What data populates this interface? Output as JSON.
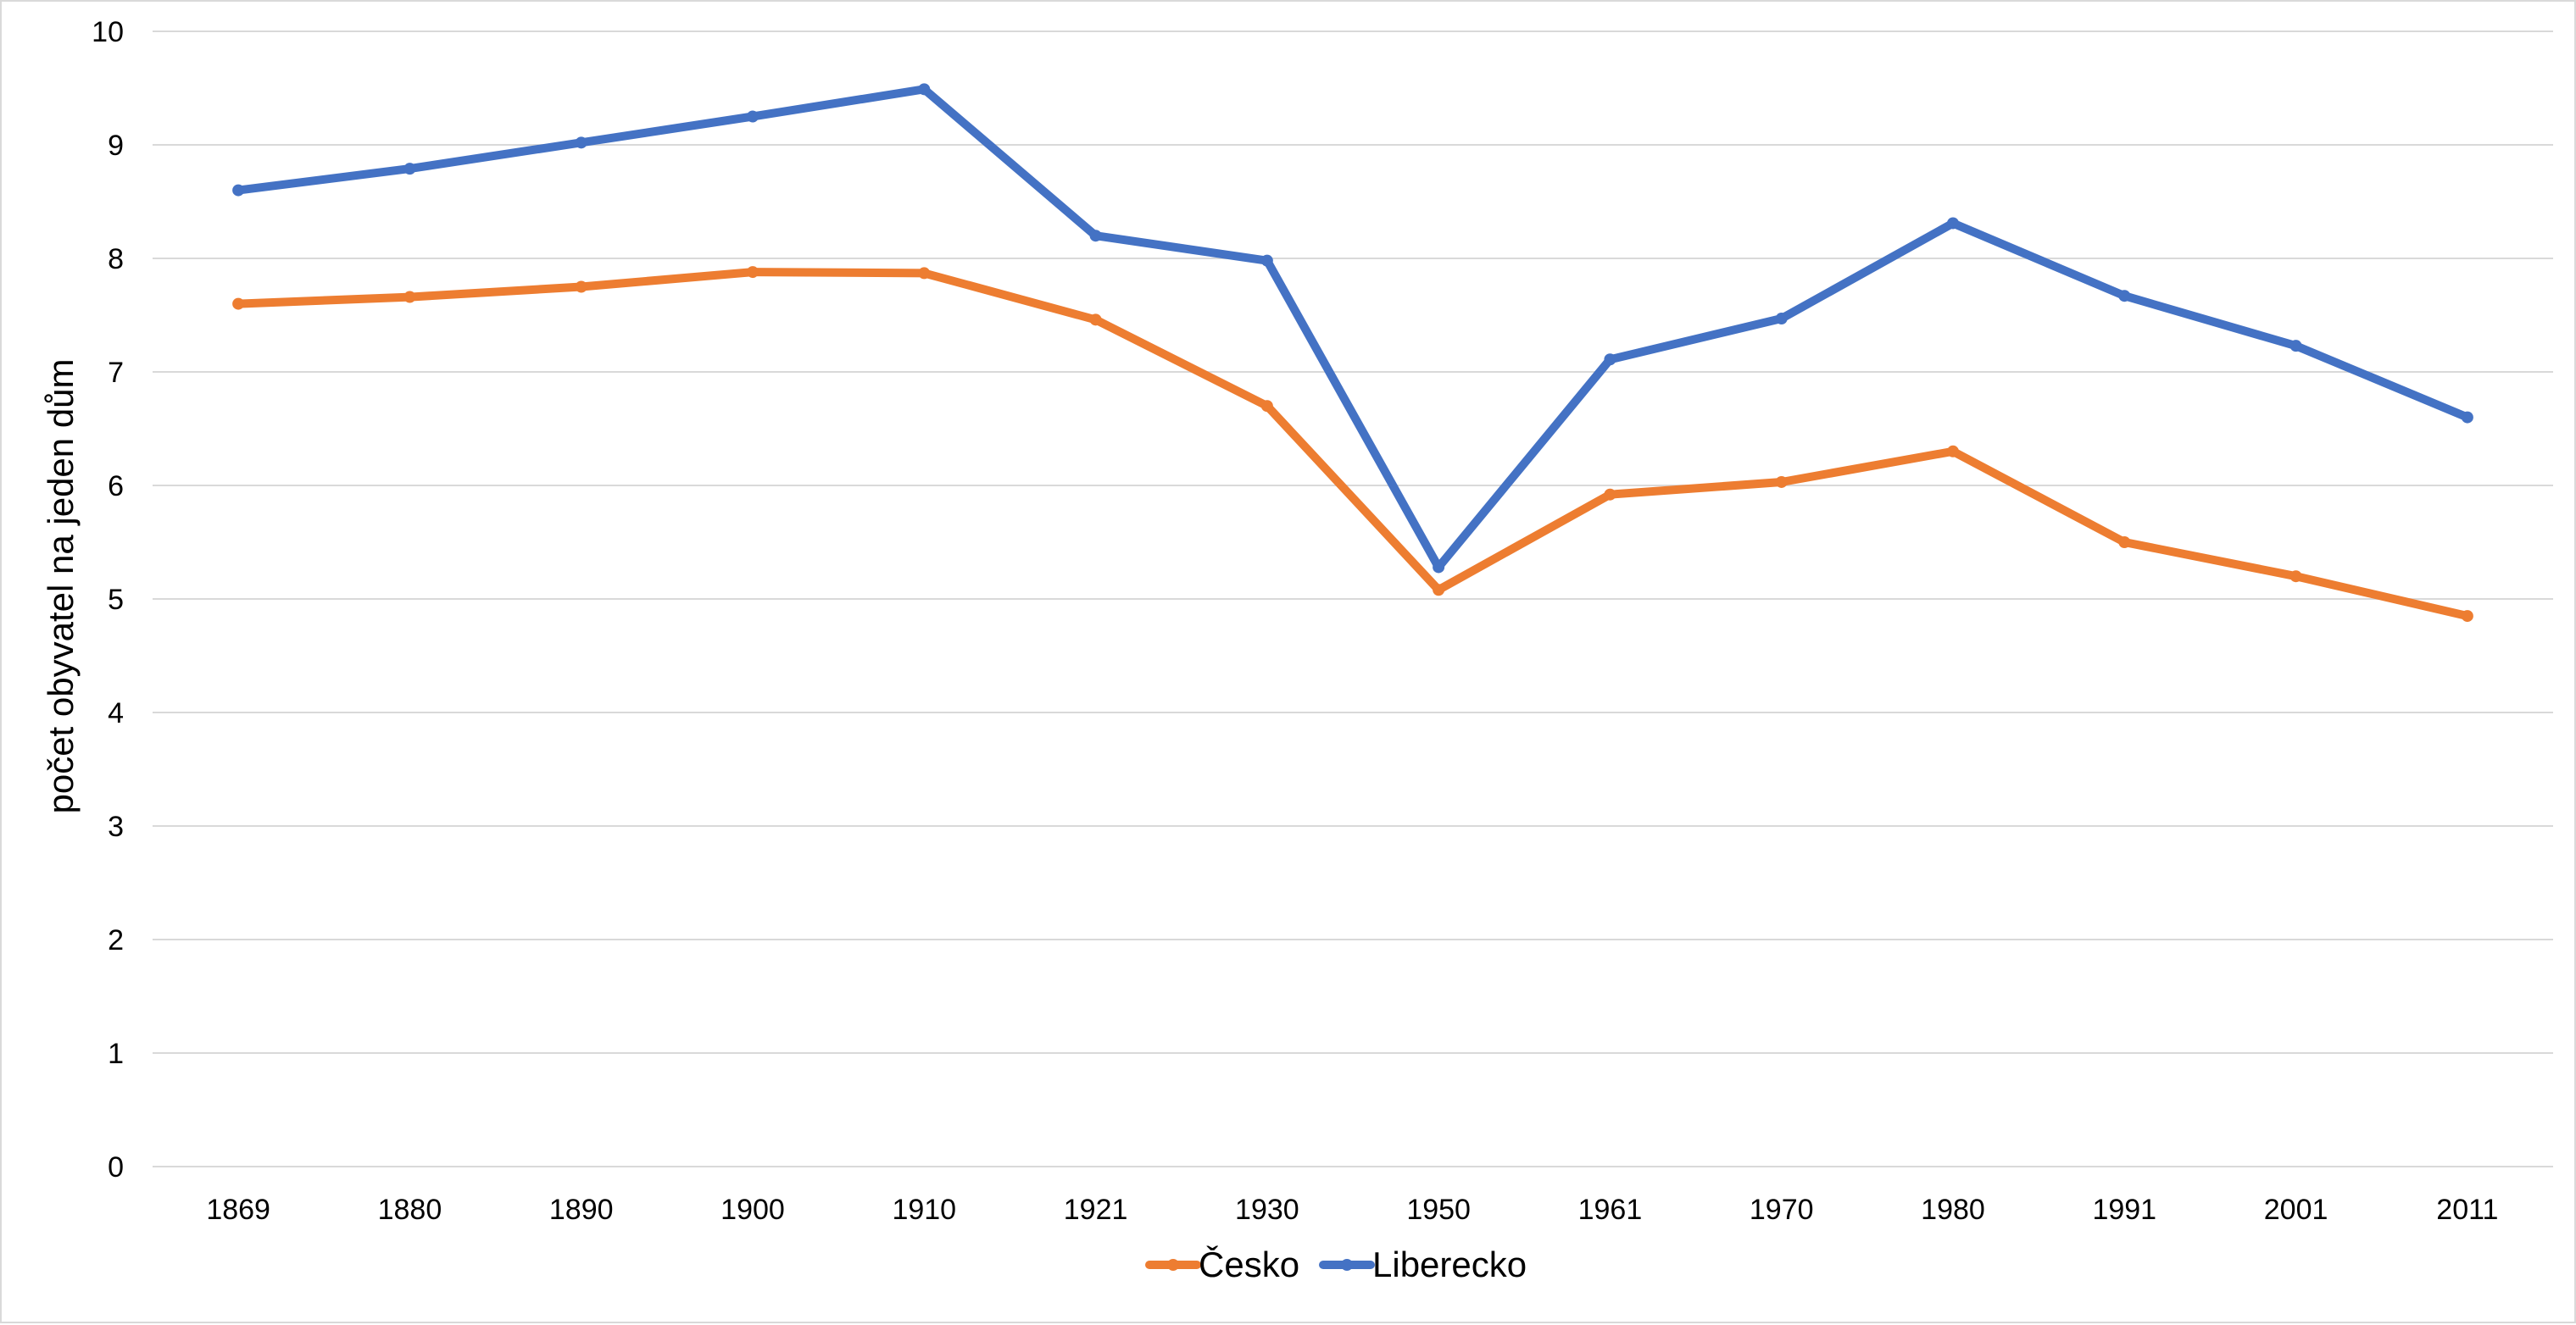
{
  "chart_data": {
    "type": "line",
    "title": "",
    "xlabel": "",
    "ylabel": "počet obyvatel na jeden dům",
    "categories": [
      "1869",
      "1880",
      "1890",
      "1900",
      "1910",
      "1921",
      "1930",
      "1950",
      "1961",
      "1970",
      "1980",
      "1991",
      "2001",
      "2011"
    ],
    "ylim": [
      0,
      10
    ],
    "yticks": [
      "0",
      "1",
      "2",
      "3",
      "4",
      "5",
      "6",
      "7",
      "8",
      "9",
      "10"
    ],
    "grid": "horizontal",
    "legend": "bottom",
    "series": [
      {
        "name": "Česko",
        "color": "#ED7D31",
        "values": [
          7.6,
          7.66,
          7.75,
          7.88,
          7.87,
          7.46,
          6.7,
          5.08,
          5.92,
          6.03,
          6.3,
          5.5,
          5.2,
          4.85
        ]
      },
      {
        "name": "Liberecko",
        "color": "#4472C4",
        "values": [
          8.6,
          8.79,
          9.02,
          9.25,
          9.49,
          8.2,
          7.98,
          5.28,
          7.11,
          7.47,
          8.31,
          7.67,
          7.23,
          6.6
        ]
      }
    ]
  }
}
